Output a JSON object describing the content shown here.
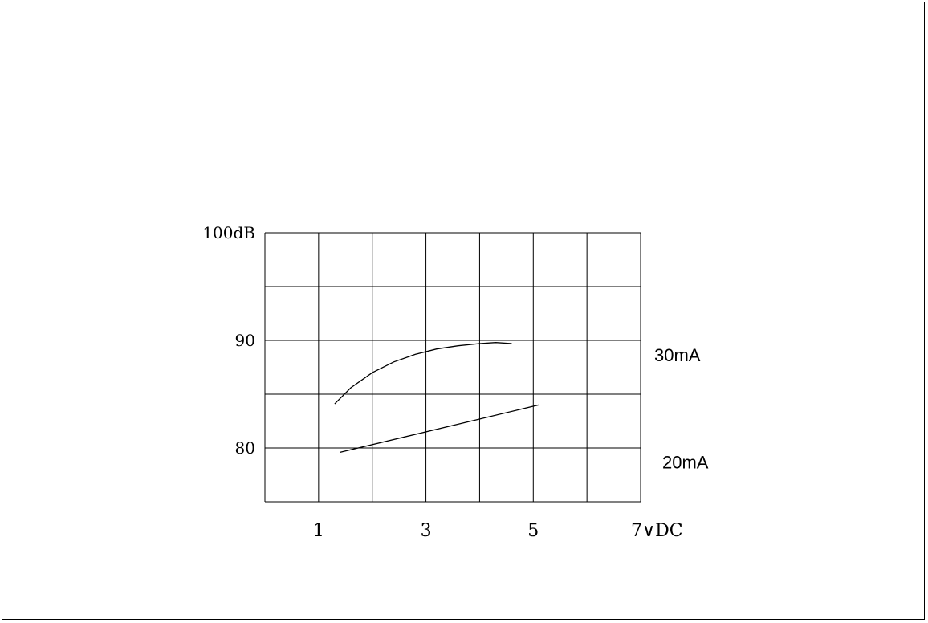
{
  "chart_data": {
    "type": "line",
    "title": "",
    "xlabel": "",
    "ylabel": "",
    "x_ticks": [
      {
        "value": 1,
        "label": "1"
      },
      {
        "value": 3,
        "label": "3"
      },
      {
        "value": 5,
        "label": "5"
      },
      {
        "value": 7,
        "label": "7∨DC"
      }
    ],
    "y_ticks": [
      {
        "value": 80,
        "label": "80"
      },
      {
        "value": 90,
        "label": "90"
      },
      {
        "value": 100,
        "label": "100dB"
      }
    ],
    "xlim": [
      0,
      7
    ],
    "ylim": [
      75,
      100
    ],
    "grid": true,
    "series": [
      {
        "name": "30mA",
        "x": [
          1.3,
          1.6,
          2.0,
          2.4,
          2.8,
          3.2,
          3.6,
          4.0,
          4.3,
          4.6
        ],
        "y": [
          84.1,
          85.6,
          87.0,
          88.0,
          88.7,
          89.2,
          89.5,
          89.7,
          89.8,
          89.7
        ]
      },
      {
        "name": "20mA",
        "x": [
          1.4,
          5.1
        ],
        "y": [
          79.6,
          84.0
        ]
      }
    ]
  }
}
